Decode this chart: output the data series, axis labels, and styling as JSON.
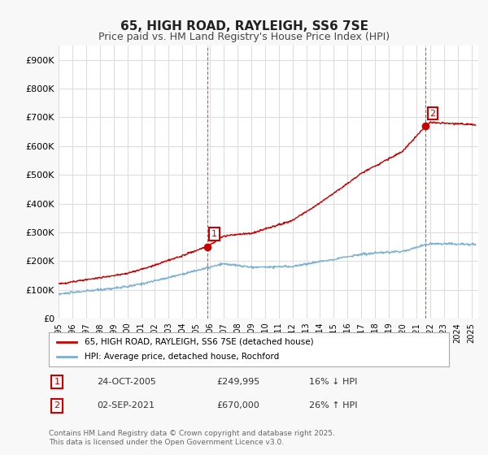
{
  "title": "65, HIGH ROAD, RAYLEIGH, SS6 7SE",
  "subtitle": "Price paid vs. HM Land Registry's House Price Index (HPI)",
  "ylabel_ticks": [
    "£0",
    "£100K",
    "£200K",
    "£300K",
    "£400K",
    "£500K",
    "£600K",
    "£700K",
    "£800K",
    "£900K"
  ],
  "ytick_vals": [
    0,
    100000,
    200000,
    300000,
    400000,
    500000,
    600000,
    700000,
    800000,
    900000
  ],
  "ylim": [
    0,
    950000
  ],
  "xlim_start": 1995.0,
  "xlim_end": 2025.5,
  "xtick_years": [
    1995,
    1996,
    1997,
    1998,
    1999,
    2000,
    2001,
    2002,
    2003,
    2004,
    2005,
    2006,
    2007,
    2008,
    2009,
    2010,
    2011,
    2012,
    2013,
    2014,
    2015,
    2016,
    2017,
    2018,
    2019,
    2020,
    2021,
    2022,
    2023,
    2024,
    2025
  ],
  "marker1_x": 2005.82,
  "marker1_y": 249995,
  "marker1_label": "1",
  "marker2_x": 2021.67,
  "marker2_y": 670000,
  "marker2_label": "2",
  "vline1_x": 2005.82,
  "vline2_x": 2021.67,
  "legend_line1_color": "#cc0000",
  "legend_line1_label": "65, HIGH ROAD, RAYLEIGH, SS6 7SE (detached house)",
  "legend_line2_color": "#7ab0d4",
  "legend_line2_label": "HPI: Average price, detached house, Rochford",
  "note1_label": "1",
  "note1_date": "24-OCT-2005",
  "note1_price": "£249,995",
  "note1_hpi": "16% ↓ HPI",
  "note2_label": "2",
  "note2_date": "02-SEP-2021",
  "note2_price": "£670,000",
  "note2_hpi": "26% ↑ HPI",
  "footer": "Contains HM Land Registry data © Crown copyright and database right 2025.\nThis data is licensed under the Open Government Licence v3.0.",
  "bg_color": "#f8f8f8",
  "plot_bg_color": "#ffffff",
  "grid_color": "#dddddd",
  "red_line_color": "#cc0000",
  "blue_line_color": "#7ab0d4"
}
